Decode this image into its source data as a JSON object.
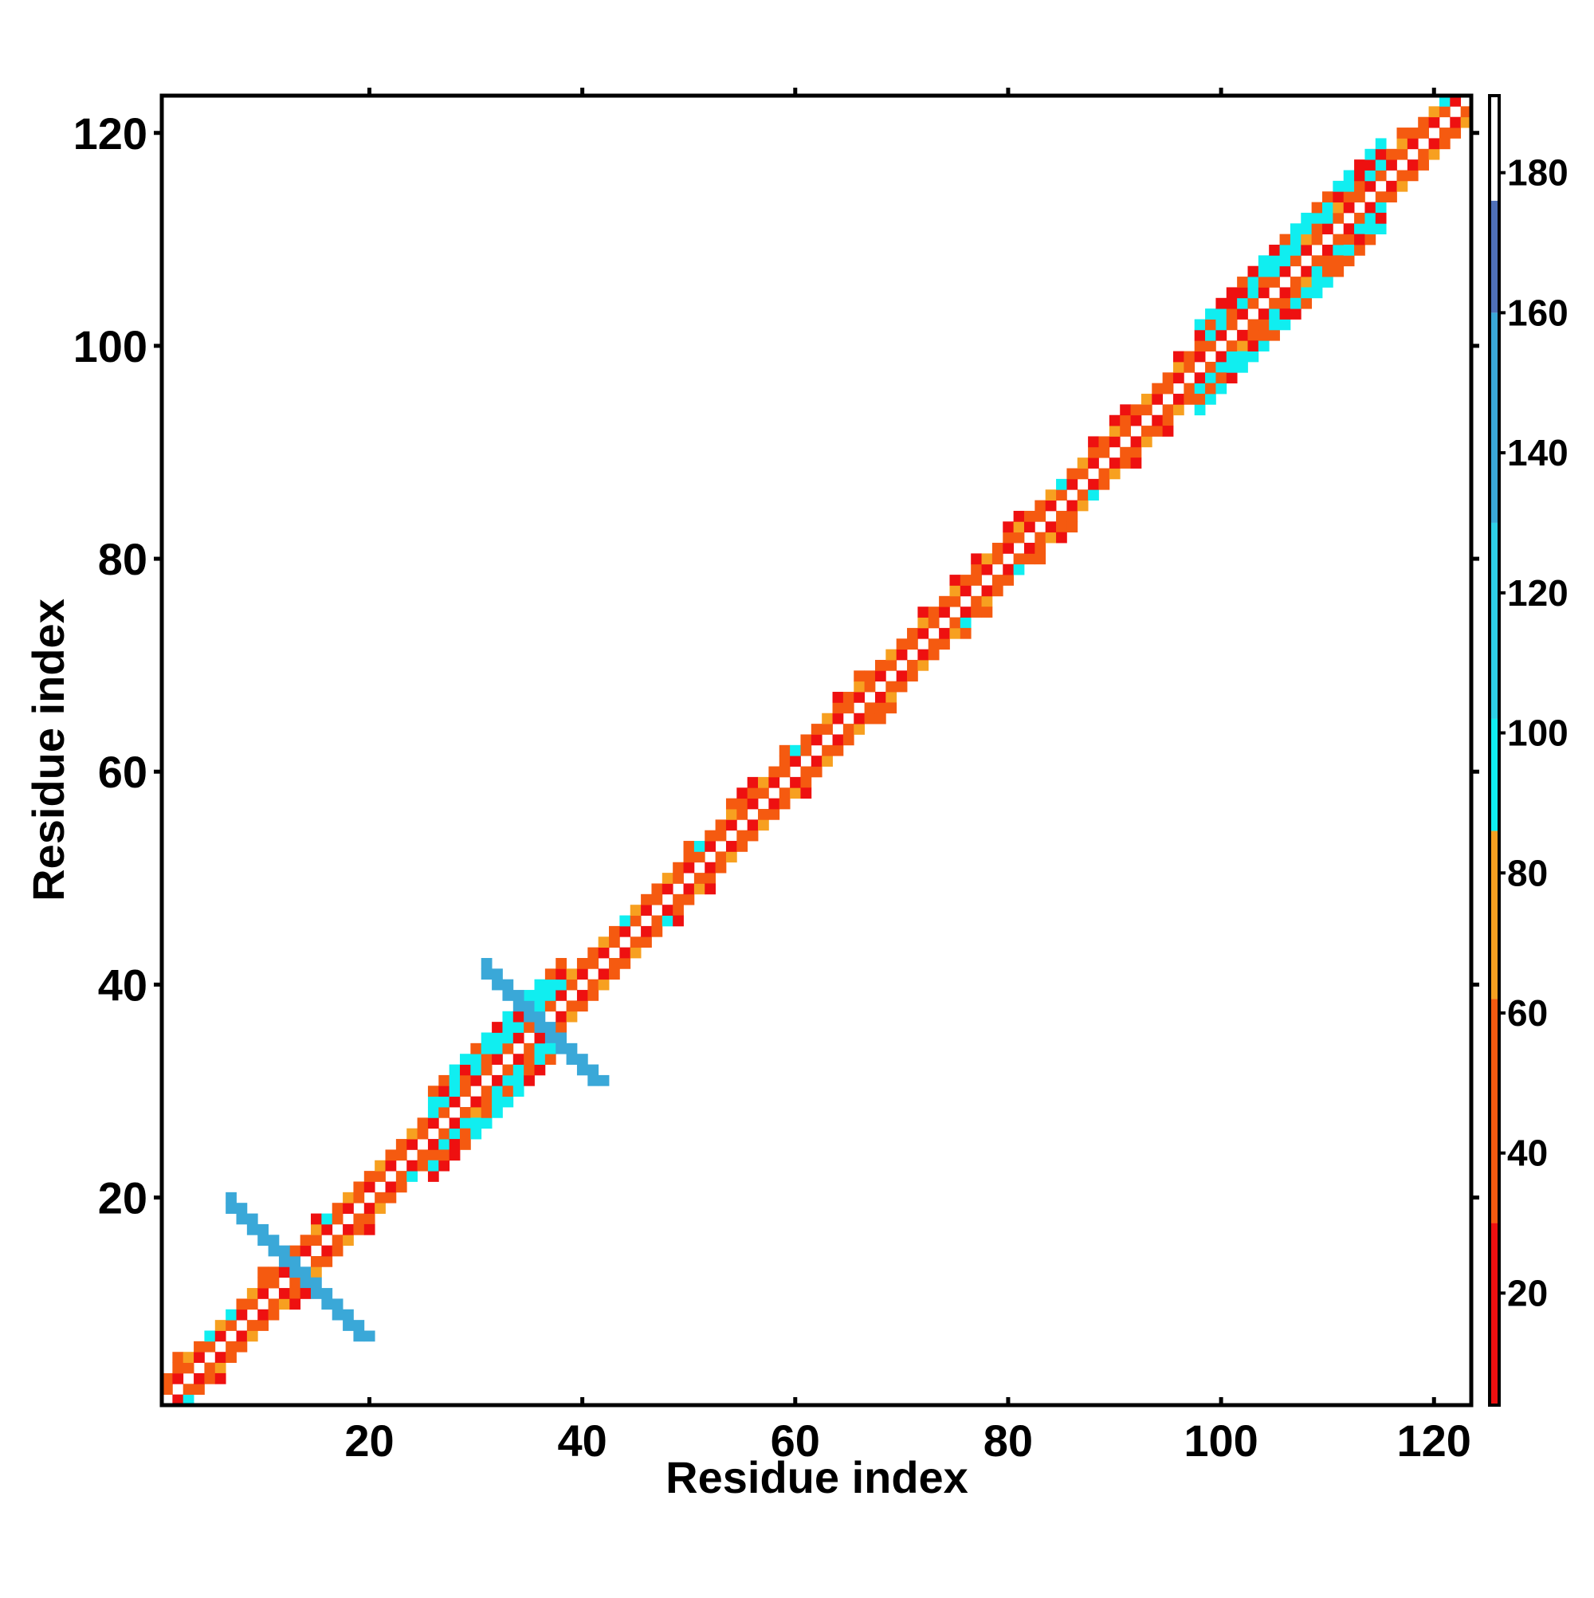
{
  "chart_data": {
    "type": "heatmap",
    "title": "",
    "xlabel": "Residue index",
    "ylabel": "Residue index",
    "xlim": [
      0.5,
      123.5
    ],
    "ylim": [
      0.5,
      123.5
    ],
    "x_ticks": [
      20,
      40,
      60,
      80,
      100,
      120
    ],
    "y_ticks": [
      20,
      40,
      60,
      80,
      100,
      120
    ],
    "grid": false,
    "colorbar": {
      "range": [
        4,
        191
      ],
      "ticks": [
        20,
        40,
        60,
        80,
        100,
        120,
        140,
        160,
        180
      ],
      "bands": [
        {
          "from": 4,
          "to": 30,
          "color": "#ee1010"
        },
        {
          "from": 30,
          "to": 62,
          "color": "#f55a10"
        },
        {
          "from": 62,
          "to": 86,
          "color": "#f7a020"
        },
        {
          "from": 86,
          "to": 102,
          "color": "#10eef0"
        },
        {
          "from": 102,
          "to": 130,
          "color": "#2ed0e8"
        },
        {
          "from": 130,
          "to": 160,
          "color": "#3aa8d8"
        },
        {
          "from": 160,
          "to": 176,
          "color": "#4f70b8"
        },
        {
          "from": 176,
          "to": 191,
          "color": "#ffffff"
        }
      ]
    },
    "description_note": "",
    "diagonal_band": {
      "residue_range": [
        1,
        123
      ],
      "offsets": [
        -2,
        -1,
        1,
        2
      ],
      "beta_like_regions": [
        [
          26,
          38
        ],
        [
          98,
          115
        ]
      ],
      "helix_like_regions": [
        [
          42,
          96
        ],
        [
          1,
          24
        ]
      ]
    },
    "crossing_contacts": [
      {
        "center": [
          13,
          13
        ],
        "arm_length": 5,
        "value": 140
      },
      {
        "center": [
          36,
          36
        ],
        "arm_length": 4,
        "value": 140
      }
    ]
  }
}
